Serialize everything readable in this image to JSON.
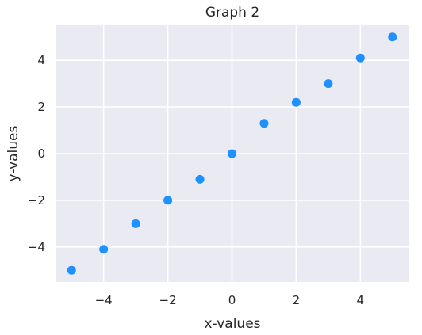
{
  "chart_data": {
    "type": "scatter",
    "title": "Graph 2",
    "xlabel": "x-values",
    "ylabel": "y-values",
    "xlim": [
      -5.5,
      5.5
    ],
    "ylim": [
      -5.5,
      5.5
    ],
    "xticks": [
      -4,
      -2,
      0,
      2,
      4
    ],
    "yticks": [
      -4,
      -2,
      0,
      2,
      4
    ],
    "xtick_labels": [
      "−4",
      "−2",
      "0",
      "2",
      "4"
    ],
    "ytick_labels": [
      "−4",
      "−2",
      "0",
      "2",
      "4"
    ],
    "grid": true,
    "points": [
      {
        "x": -5,
        "y": -5.0
      },
      {
        "x": -4,
        "y": -4.1
      },
      {
        "x": -3,
        "y": -3.0
      },
      {
        "x": -2,
        "y": -2.0
      },
      {
        "x": -1,
        "y": -1.1
      },
      {
        "x": 0,
        "y": 0.0
      },
      {
        "x": 1,
        "y": 1.3
      },
      {
        "x": 2,
        "y": 2.2
      },
      {
        "x": 3,
        "y": 3.0
      },
      {
        "x": 4,
        "y": 4.1
      },
      {
        "x": 5,
        "y": 5.0
      }
    ],
    "colors": {
      "background": "#eaeaf2",
      "grid": "#ffffff",
      "marker": "#1e90ff"
    }
  }
}
